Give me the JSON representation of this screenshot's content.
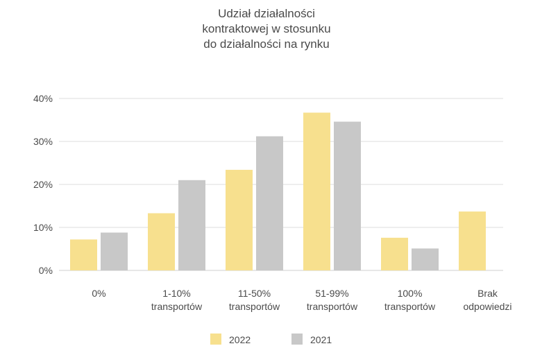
{
  "chart_data": {
    "type": "bar",
    "title_lines": [
      "Udział działalności",
      "kontraktowej w stosunku",
      "do działalności na rynku"
    ],
    "categories": [
      [
        "0%"
      ],
      [
        "1-10%",
        "transportów"
      ],
      [
        "11-50%",
        "transportów"
      ],
      [
        "51-99%",
        "transportów"
      ],
      [
        "100%",
        "transportów"
      ],
      [
        "Brak",
        "odpowiedzi"
      ]
    ],
    "series": [
      {
        "name": "2022",
        "color": "#f7e08e",
        "values": [
          7.2,
          13.3,
          23.4,
          36.7,
          7.6,
          13.7
        ]
      },
      {
        "name": "2021",
        "color": "#c8c8c8",
        "values": [
          8.8,
          21.0,
          31.2,
          34.6,
          5.1,
          null
        ]
      }
    ],
    "ylim": [
      0,
      40
    ],
    "yticks": [
      "0%",
      "10%",
      "20%",
      "30%",
      "40%"
    ],
    "grid": true,
    "legend_position": "bottom-center"
  }
}
